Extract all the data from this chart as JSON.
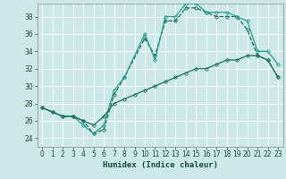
{
  "title": "",
  "xlabel": "Humidex (Indice chaleur)",
  "bg_color": "#cce8e8",
  "grid_color": "#ffffff",
  "xlim": [
    -0.5,
    23.5
  ],
  "ylim": [
    23.0,
    39.5
  ],
  "xticks": [
    0,
    1,
    2,
    3,
    4,
    5,
    6,
    7,
    8,
    9,
    10,
    11,
    12,
    13,
    14,
    15,
    16,
    17,
    18,
    19,
    20,
    21,
    22,
    23
  ],
  "yticks": [
    24,
    26,
    28,
    30,
    32,
    34,
    36,
    38
  ],
  "dark_teal": "#1a6e5a",
  "mid_teal": "#2a9d8f",
  "series": [
    {
      "name": "curve_top_dashed",
      "x": [
        0,
        1,
        2,
        3,
        4,
        5,
        6,
        7,
        8,
        10,
        11,
        12,
        13,
        14,
        15,
        16,
        17,
        18,
        19,
        20,
        21,
        22,
        23
      ],
      "y": [
        27.5,
        27.0,
        26.5,
        26.5,
        26.0,
        24.5,
        25.0,
        29.0,
        31.0,
        35.5,
        33.5,
        37.5,
        37.5,
        39.0,
        39.0,
        38.5,
        38.0,
        38.0,
        38.0,
        36.5,
        33.5,
        33.0,
        31.0
      ],
      "color": "#1a6e5a",
      "lw": 0.9,
      "ls": "--",
      "marker": "D",
      "ms": 2.0
    },
    {
      "name": "curve_top_solid",
      "x": [
        0,
        1,
        2,
        3,
        4,
        5,
        6,
        7,
        8,
        10,
        11,
        12,
        13,
        14,
        15,
        16,
        17,
        18,
        19,
        20,
        21,
        22,
        23
      ],
      "y": [
        27.5,
        27.0,
        26.5,
        26.5,
        25.5,
        24.5,
        25.5,
        29.5,
        31.0,
        36.0,
        33.0,
        38.0,
        38.0,
        39.5,
        39.5,
        38.5,
        38.5,
        38.5,
        38.0,
        37.5,
        34.0,
        34.0,
        32.5
      ],
      "color": "#2a9d8f",
      "lw": 0.9,
      "ls": "-",
      "marker": "D",
      "ms": 2.0
    },
    {
      "name": "curve_bottom",
      "x": [
        0,
        1,
        2,
        3,
        4,
        5,
        6,
        7,
        8,
        9,
        10,
        11,
        12,
        13,
        14,
        15,
        16,
        17,
        18,
        19,
        20,
        21,
        22,
        23
      ],
      "y": [
        27.5,
        27.0,
        26.5,
        26.5,
        26.0,
        25.5,
        26.5,
        28.0,
        28.5,
        29.0,
        29.5,
        30.0,
        30.5,
        31.0,
        31.5,
        32.0,
        32.0,
        32.5,
        33.0,
        33.0,
        33.5,
        33.5,
        33.0,
        31.0
      ],
      "color": "#1a6e5a",
      "lw": 0.9,
      "ls": "-",
      "marker": "D",
      "ms": 2.0
    }
  ]
}
